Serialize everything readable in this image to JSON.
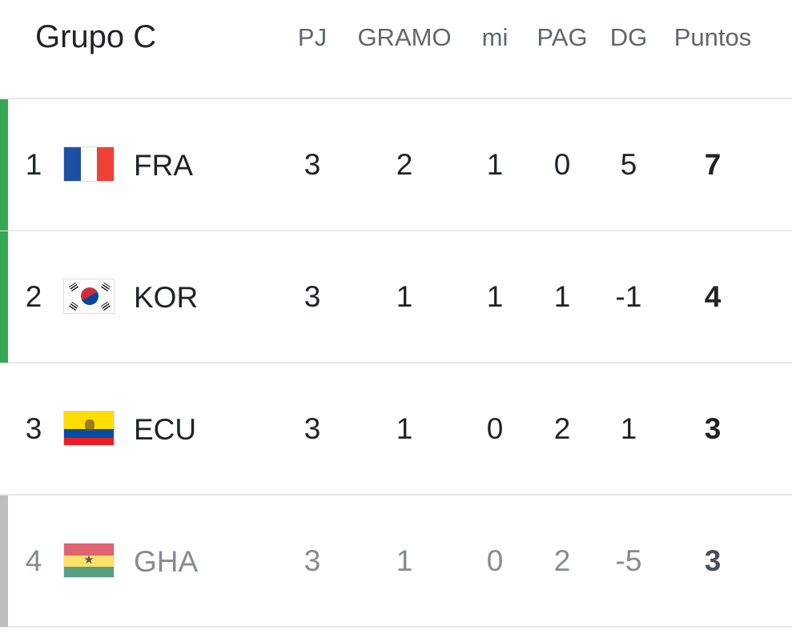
{
  "group": {
    "title": "Grupo C"
  },
  "columns": [
    "PJ",
    "GRAMO",
    "mi",
    "PAG",
    "DG",
    "Puntos"
  ],
  "colors": {
    "qualified": "#34a853",
    "eliminated": "#bdbdbd",
    "header_text": "#5f6670",
    "divider": "#e6e8eb"
  },
  "rows": [
    {
      "rank": "1",
      "code": "FRA",
      "flag": "france-flag-icon",
      "status": "qualified",
      "cells": [
        "3",
        "2",
        "1",
        "0",
        "5",
        "7"
      ]
    },
    {
      "rank": "2",
      "code": "KOR",
      "flag": "south-korea-flag-icon",
      "status": "qualified",
      "cells": [
        "3",
        "1",
        "1",
        "1",
        "-1",
        "4"
      ]
    },
    {
      "rank": "3",
      "code": "ECU",
      "flag": "ecuador-flag-icon",
      "status": "none",
      "cells": [
        "3",
        "1",
        "0",
        "2",
        "1",
        "3"
      ]
    },
    {
      "rank": "4",
      "code": "GHA",
      "flag": "ghana-flag-icon",
      "status": "eliminated",
      "cells": [
        "3",
        "1",
        "0",
        "2",
        "-5",
        "3"
      ]
    }
  ]
}
